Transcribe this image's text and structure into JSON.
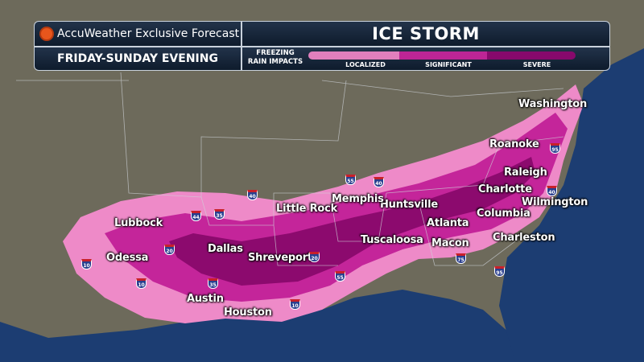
{
  "header": {
    "brand": "AccuWeather Exclusive Forecast",
    "brand_icon": "sun-logo-icon",
    "title": "ICE STORM",
    "period": "FRIDAY-SUNDAY EVENING"
  },
  "legend": {
    "title": "FREEZING RAIN IMPACTS",
    "levels": [
      {
        "label": "LOCALIZED",
        "color": "#e17fbd"
      },
      {
        "label": "SIGNIFICANT",
        "color": "#bd2595"
      },
      {
        "label": "SEVERE",
        "color": "#87096c"
      }
    ]
  },
  "map_colors": {
    "land": "#6d6a5b",
    "ocean": "#1c3d72",
    "localized": "#ee8ac8",
    "significant": "#c4259a",
    "severe": "#8c0a6e"
  },
  "cities": [
    "Washington",
    "Roanoke",
    "Raleigh",
    "Charlotte",
    "Wilmington",
    "Columbia",
    "Charleston",
    "Atlanta",
    "Macon",
    "Huntsville",
    "Memphis",
    "Little Rock",
    "Tuscaloosa",
    "Lubbock",
    "Odessa",
    "Dallas",
    "Shreveport",
    "Austin",
    "Houston"
  ],
  "interstates": [
    "10",
    "20",
    "10",
    "35",
    "44",
    "35",
    "40",
    "55",
    "40",
    "20",
    "55",
    "10",
    "75",
    "95",
    "95",
    "40"
  ]
}
